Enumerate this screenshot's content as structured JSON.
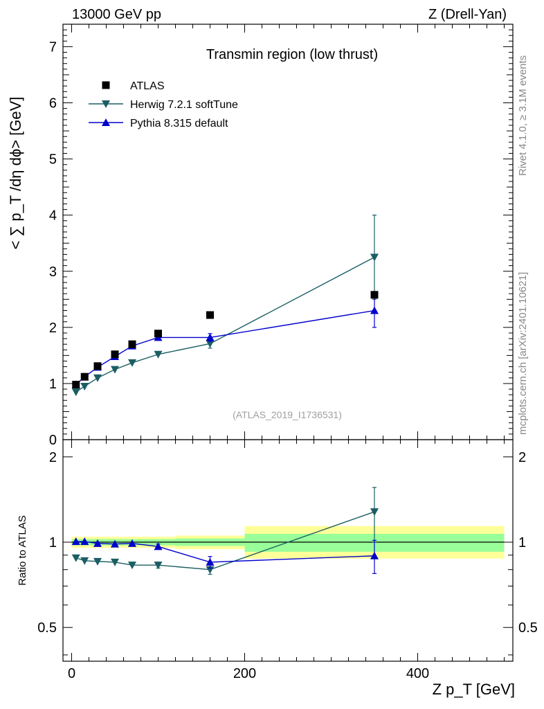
{
  "header": {
    "energy": "13000 GeV pp",
    "process": "Z (Drell-Yan)"
  },
  "side_labels": {
    "rivet": "Rivet 4.1.0, ≥ 3.1M events",
    "mcplots": "mcplots.cern.ch [arXiv:2401.10621]"
  },
  "chart_data": {
    "type": "line",
    "title": "Transmin region (low thrust)",
    "analysis": "(ATLAS_2019_I1736531)",
    "xlabel": "Z p_T [GeV]",
    "ylabel": "< ∑ p_T /dη dϕ> [GeV]",
    "ratio_ylabel": "Ratio to ATLAS",
    "xlim": [
      -10,
      510
    ],
    "ylim": [
      0,
      7.4
    ],
    "ratio_ylim": [
      0.38,
      2.3
    ],
    "x_ticks": [
      0,
      200,
      400
    ],
    "y_ticks": [
      0,
      1,
      2,
      3,
      4,
      5,
      6,
      7
    ],
    "ratio_y_ticks": [
      0.5,
      1,
      2
    ],
    "ratio_y_tick_labels": [
      "0.5",
      "1",
      "2"
    ],
    "x": [
      5,
      15,
      30,
      50,
      70,
      100,
      160,
      350
    ],
    "series": [
      {
        "name": "ATLAS",
        "marker": "square",
        "color": "#000000",
        "values": [
          0.98,
          1.12,
          1.31,
          1.52,
          1.7,
          1.89,
          2.22,
          2.58
        ],
        "errors": [
          0.02,
          0.02,
          0.02,
          0.03,
          0.03,
          0.04,
          0.04,
          0.05
        ]
      },
      {
        "name": "Herwig 7.2.1 softTune",
        "marker": "triangle-down",
        "color": "#1a5e63",
        "values": [
          0.85,
          0.95,
          1.1,
          1.25,
          1.37,
          1.52,
          1.71,
          3.25
        ],
        "errors": [
          0.01,
          0.01,
          0.01,
          0.02,
          0.02,
          0.03,
          0.08,
          0.75
        ],
        "ratio": [
          0.88,
          0.86,
          0.855,
          0.85,
          0.83,
          0.83,
          0.8,
          1.28
        ],
        "ratio_errors": [
          0.01,
          0.01,
          0.01,
          0.01,
          0.01,
          0.02,
          0.03,
          0.28
        ]
      },
      {
        "name": "Pythia 8.315 default",
        "marker": "triangle-up",
        "color": "#0000cc",
        "values": [
          0.98,
          1.12,
          1.29,
          1.48,
          1.67,
          1.82,
          1.82,
          2.3
        ],
        "errors": [
          0.01,
          0.01,
          0.01,
          0.02,
          0.02,
          0.03,
          0.07,
          0.3
        ],
        "ratio": [
          1.005,
          1.005,
          0.99,
          0.985,
          0.99,
          0.965,
          0.85,
          0.895
        ],
        "ratio_errors": [
          0.01,
          0.01,
          0.01,
          0.01,
          0.01,
          0.02,
          0.04,
          0.12
        ]
      }
    ],
    "ratio_bands": [
      {
        "x_range": [
          0,
          120
        ],
        "inner": [
          0.975,
          1.025
        ],
        "outer": [
          0.955,
          1.045
        ]
      },
      {
        "x_range": [
          120,
          200
        ],
        "inner": [
          0.97,
          1.03
        ],
        "outer": [
          0.945,
          1.055
        ]
      },
      {
        "x_range": [
          200,
          500
        ],
        "inner": [
          0.925,
          1.07
        ],
        "outer": [
          0.875,
          1.14
        ]
      }
    ],
    "band_colors": {
      "inner": "#99ff99",
      "outer": "#ffff99"
    }
  }
}
